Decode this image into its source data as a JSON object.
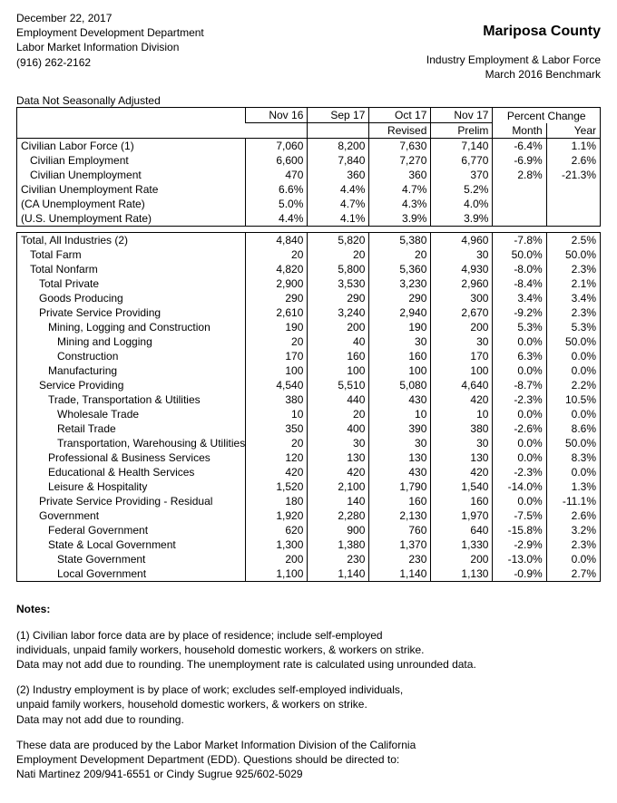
{
  "header": {
    "date": "December 22, 2017",
    "dept1": "Employment Development Department",
    "dept2": "Labor Market Information Division",
    "phone": "(916) 262-2162",
    "county": "Mariposa County",
    "sub1": "Industry Employment & Labor Force",
    "sub2": "March 2016 Benchmark"
  },
  "seasonal_label": "Data Not Seasonally Adjusted",
  "columns": {
    "c1_a": "Nov 16",
    "c1_b": "",
    "c2_a": "Sep 17",
    "c2_b": "",
    "c3_a": "Oct 17",
    "c3_b": "Revised",
    "c4_a": "Nov 17",
    "c4_b": "Prelim",
    "pct_group": "Percent  Change",
    "c5_b": "Month",
    "c6_b": "Year"
  },
  "rows1": [
    {
      "label": "Civilian Labor Force (1)",
      "ind": 0,
      "v": [
        "7,060",
        "8,200",
        "7,630",
        "7,140",
        "-6.4%",
        "1.1%"
      ]
    },
    {
      "label": "Civilian Employment",
      "ind": 1,
      "v": [
        "6,600",
        "7,840",
        "7,270",
        "6,770",
        "-6.9%",
        "2.6%"
      ]
    },
    {
      "label": "Civilian Unemployment",
      "ind": 1,
      "v": [
        "470",
        "360",
        "360",
        "370",
        "2.8%",
        "-21.3%"
      ]
    },
    {
      "label": "Civilian Unemployment Rate",
      "ind": 0,
      "v": [
        "6.6%",
        "4.4%",
        "4.7%",
        "5.2%",
        "",
        ""
      ]
    },
    {
      "label": "(CA Unemployment Rate)",
      "ind": 0,
      "v": [
        "5.0%",
        "4.7%",
        "4.3%",
        "4.0%",
        "",
        ""
      ]
    },
    {
      "label": "(U.S. Unemployment Rate)",
      "ind": 0,
      "v": [
        "4.4%",
        "4.1%",
        "3.9%",
        "3.9%",
        "",
        ""
      ]
    }
  ],
  "rows2": [
    {
      "label": "Total, All Industries (2)",
      "ind": 0,
      "v": [
        "4,840",
        "5,820",
        "5,380",
        "4,960",
        "-7.8%",
        "2.5%"
      ]
    },
    {
      "label": "Total Farm",
      "ind": 1,
      "v": [
        "20",
        "20",
        "20",
        "30",
        "50.0%",
        "50.0%"
      ]
    },
    {
      "label": "Total Nonfarm",
      "ind": 1,
      "v": [
        "4,820",
        "5,800",
        "5,360",
        "4,930",
        "-8.0%",
        "2.3%"
      ]
    },
    {
      "label": "Total Private",
      "ind": 2,
      "v": [
        "2,900",
        "3,530",
        "3,230",
        "2,960",
        "-8.4%",
        "2.1%"
      ]
    },
    {
      "label": "Goods Producing",
      "ind": 2,
      "v": [
        "290",
        "290",
        "290",
        "300",
        "3.4%",
        "3.4%"
      ]
    },
    {
      "label": "Private Service Providing",
      "ind": 2,
      "v": [
        "2,610",
        "3,240",
        "2,940",
        "2,670",
        "-9.2%",
        "2.3%"
      ]
    },
    {
      "label": "Mining, Logging and Construction",
      "ind": 3,
      "v": [
        "190",
        "200",
        "190",
        "200",
        "5.3%",
        "5.3%"
      ]
    },
    {
      "label": "Mining and Logging",
      "ind": 4,
      "v": [
        "20",
        "40",
        "30",
        "30",
        "0.0%",
        "50.0%"
      ]
    },
    {
      "label": "Construction",
      "ind": 4,
      "v": [
        "170",
        "160",
        "160",
        "170",
        "6.3%",
        "0.0%"
      ]
    },
    {
      "label": "Manufacturing",
      "ind": 3,
      "v": [
        "100",
        "100",
        "100",
        "100",
        "0.0%",
        "0.0%"
      ]
    },
    {
      "label": "Service Providing",
      "ind": 2,
      "v": [
        "4,540",
        "5,510",
        "5,080",
        "4,640",
        "-8.7%",
        "2.2%"
      ]
    },
    {
      "label": "Trade, Transportation & Utilities",
      "ind": 3,
      "v": [
        "380",
        "440",
        "430",
        "420",
        "-2.3%",
        "10.5%"
      ]
    },
    {
      "label": "Wholesale Trade",
      "ind": 4,
      "v": [
        "10",
        "20",
        "10",
        "10",
        "0.0%",
        "0.0%"
      ]
    },
    {
      "label": "Retail Trade",
      "ind": 4,
      "v": [
        "350",
        "400",
        "390",
        "380",
        "-2.6%",
        "8.6%"
      ]
    },
    {
      "label": "Transportation, Warehousing & Utilities",
      "ind": 4,
      "v": [
        "20",
        "30",
        "30",
        "30",
        "0.0%",
        "50.0%"
      ]
    },
    {
      "label": "Professional & Business Services",
      "ind": 3,
      "v": [
        "120",
        "130",
        "130",
        "130",
        "0.0%",
        "8.3%"
      ]
    },
    {
      "label": "Educational & Health Services",
      "ind": 3,
      "v": [
        "420",
        "420",
        "430",
        "420",
        "-2.3%",
        "0.0%"
      ]
    },
    {
      "label": "Leisure & Hospitality",
      "ind": 3,
      "v": [
        "1,520",
        "2,100",
        "1,790",
        "1,540",
        "-14.0%",
        "1.3%"
      ]
    },
    {
      "label": "Private Service Providing - Residual",
      "ind": 2,
      "v": [
        "180",
        "140",
        "160",
        "160",
        "0.0%",
        "-11.1%"
      ]
    },
    {
      "label": "Government",
      "ind": 2,
      "v": [
        "1,920",
        "2,280",
        "2,130",
        "1,970",
        "-7.5%",
        "2.6%"
      ]
    },
    {
      "label": "Federal Government",
      "ind": 3,
      "v": [
        "620",
        "900",
        "760",
        "640",
        "-15.8%",
        "3.2%"
      ]
    },
    {
      "label": "State & Local Government",
      "ind": 3,
      "v": [
        "1,300",
        "1,380",
        "1,370",
        "1,330",
        "-2.9%",
        "2.3%"
      ]
    },
    {
      "label": "State Government",
      "ind": 4,
      "v": [
        "200",
        "230",
        "230",
        "200",
        "-13.0%",
        "0.0%"
      ]
    },
    {
      "label": "Local Government",
      "ind": 4,
      "v": [
        "1,100",
        "1,140",
        "1,140",
        "1,130",
        "-0.9%",
        "2.7%"
      ]
    }
  ],
  "notes": {
    "title": "Notes:",
    "n1a": "(1) Civilian labor force data are by place of residence; include self-employed",
    "n1b": "individuals, unpaid family workers, household domestic workers, & workers on strike.",
    "n1c": "Data may not add due to rounding. The unemployment rate is calculated using unrounded data.",
    "n2a": "(2) Industry employment is by place of work; excludes self-employed individuals,",
    "n2b": "unpaid family workers, household domestic workers, & workers on strike.",
    "n2c": "Data may not add due to rounding.",
    "n3a": "These data are produced by the Labor Market Information Division of the California",
    "n3b": "Employment Development Department (EDD). Questions should be directed to:",
    "n3c": "Nati Martinez 209/941-6551 or Cindy Sugrue 925/602-5029"
  }
}
